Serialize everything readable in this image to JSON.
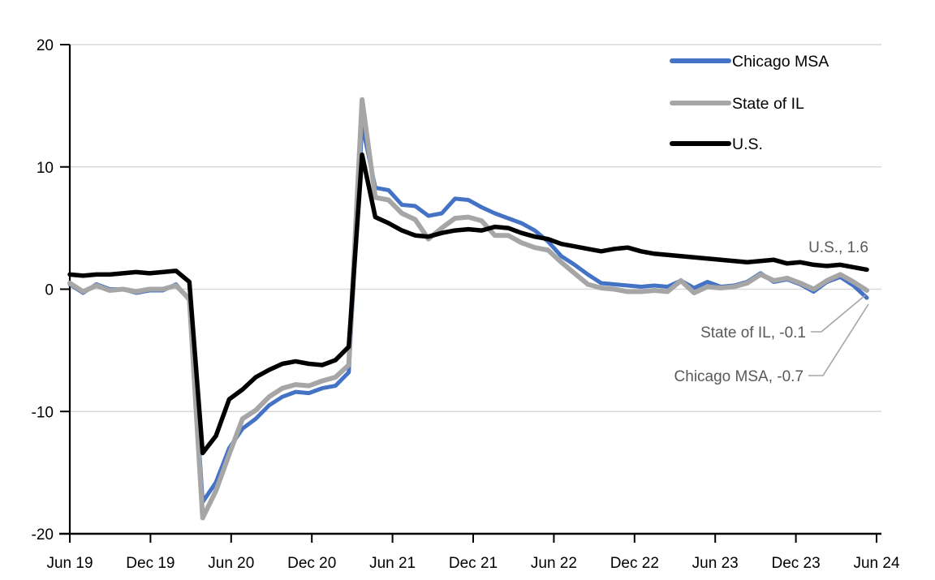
{
  "chart_data": {
    "type": "line",
    "title": "",
    "xlabel": "",
    "ylabel": "",
    "x_start": "Jun 2019",
    "x_end": "Jun 2024",
    "frequency": "monthly",
    "x_tick_labels": [
      "Jun 19",
      "Dec 19",
      "Jun 20",
      "Dec 20",
      "Jun 21",
      "Dec 21",
      "Jun 22",
      "Dec 22",
      "Jun 23",
      "Dec 23",
      "Jun 24"
    ],
    "ylim": [
      -20,
      20
    ],
    "yticks": [
      20,
      10,
      0,
      -10,
      -20
    ],
    "grid": true,
    "legend_position": "top-right",
    "colors": {
      "chicago_msa": "#4472C4",
      "state_of_il": "#A6A6A6",
      "us": "#000000",
      "gridline": "#D9D9D9",
      "annotation_text": "#595959",
      "leader_line": "#A6A6A6"
    },
    "series": [
      {
        "name": "Chicago MSA",
        "color": "#4472C4",
        "end_value": -0.7,
        "values": [
          0.4,
          -0.3,
          0.4,
          0.0,
          0.0,
          -0.3,
          -0.1,
          -0.1,
          0.4,
          -0.9,
          -17.4,
          -15.8,
          -13.0,
          -11.4,
          -10.6,
          -9.5,
          -8.8,
          -8.4,
          -8.5,
          -8.1,
          -7.9,
          -6.8,
          13.5,
          8.3,
          8.1,
          6.9,
          6.8,
          6.0,
          6.2,
          7.4,
          7.3,
          6.7,
          6.2,
          5.8,
          5.4,
          4.8,
          3.9,
          2.7,
          2.0,
          1.2,
          0.5,
          0.4,
          0.3,
          0.2,
          0.3,
          0.2,
          0.7,
          0.1,
          0.6,
          0.2,
          0.3,
          0.6,
          1.3,
          0.6,
          0.8,
          0.4,
          -0.2,
          0.6,
          1.0,
          0.3,
          -0.7
        ]
      },
      {
        "name": "State of IL",
        "color": "#A6A6A6",
        "end_value": -0.1,
        "values": [
          0.5,
          -0.2,
          0.3,
          -0.1,
          0.0,
          -0.2,
          0.0,
          0.0,
          0.3,
          -0.8,
          -18.7,
          -16.5,
          -13.5,
          -10.6,
          -9.9,
          -8.8,
          -8.1,
          -7.8,
          -7.9,
          -7.5,
          -7.2,
          -6.2,
          15.5,
          7.5,
          7.3,
          6.2,
          5.7,
          4.1,
          5.0,
          5.8,
          5.9,
          5.6,
          4.4,
          4.4,
          3.8,
          3.4,
          3.2,
          2.2,
          1.3,
          0.4,
          0.1,
          0.0,
          -0.2,
          -0.2,
          -0.1,
          -0.2,
          0.7,
          -0.3,
          0.2,
          0.1,
          0.2,
          0.5,
          1.2,
          0.7,
          0.9,
          0.5,
          0.0,
          0.7,
          1.2,
          0.6,
          -0.1
        ]
      },
      {
        "name": "U.S.",
        "color": "#000000",
        "end_value": 1.6,
        "values": [
          1.2,
          1.1,
          1.2,
          1.2,
          1.3,
          1.4,
          1.3,
          1.4,
          1.5,
          0.6,
          -13.4,
          -12.0,
          -9.0,
          -8.2,
          -7.2,
          -6.6,
          -6.1,
          -5.9,
          -6.1,
          -6.2,
          -5.8,
          -4.7,
          11.0,
          5.9,
          5.4,
          4.8,
          4.4,
          4.3,
          4.6,
          4.8,
          4.9,
          4.8,
          5.1,
          5.0,
          4.6,
          4.3,
          4.1,
          3.7,
          3.5,
          3.3,
          3.1,
          3.3,
          3.4,
          3.1,
          2.9,
          2.8,
          2.7,
          2.6,
          2.5,
          2.4,
          2.3,
          2.2,
          2.3,
          2.4,
          2.1,
          2.2,
          2.0,
          1.9,
          2.0,
          1.8,
          1.6
        ]
      }
    ],
    "annotations": [
      {
        "text": "U.S., 1.6"
      },
      {
        "text": "State of IL, -0.1"
      },
      {
        "text": "Chicago MSA, -0.7"
      }
    ]
  },
  "legend": {
    "items": [
      "Chicago MSA",
      "State of IL",
      "U.S."
    ]
  }
}
